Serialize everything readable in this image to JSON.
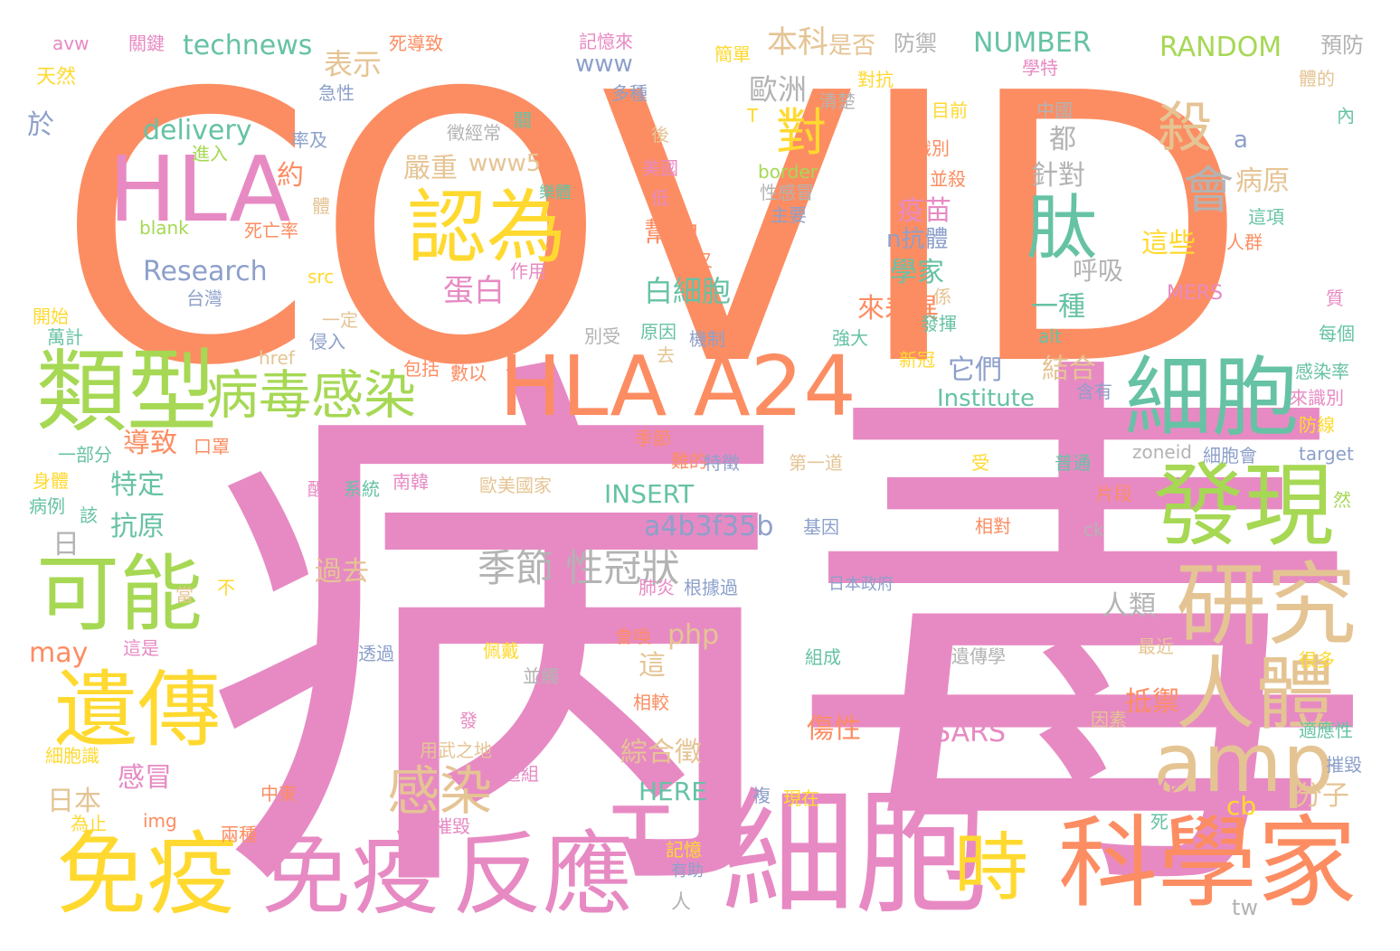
{
  "words": [
    {
      "text": "COVID",
      "color": "#fc8d62"
    },
    {
      "text": "病毒",
      "color": "#e78ac3"
    },
    {
      "text": "細胞",
      "color": "#e78ac3"
    },
    {
      "text": "科學家",
      "color": "#fc8d62"
    },
    {
      "text": "免疫",
      "color": "#ffd92f"
    },
    {
      "text": "免疫",
      "color": "#e78ac3"
    },
    {
      "text": "反應",
      "color": "#e78ac3"
    },
    {
      "text": "HLA A24",
      "color": "#fc8d62"
    },
    {
      "text": "類型",
      "color": "#a6d854"
    },
    {
      "text": "細胞",
      "color": "#66c2a5"
    },
    {
      "text": "發現",
      "color": "#a6d854"
    },
    {
      "text": "研究",
      "color": "#e5c494"
    },
    {
      "text": "HLA",
      "color": "#e78ac3"
    },
    {
      "text": "認為",
      "color": "#ffd92f"
    },
    {
      "text": "遺傳",
      "color": "#ffd92f"
    },
    {
      "text": "可能",
      "color": "#a6d854"
    },
    {
      "text": "人體",
      "color": "#e5c494"
    },
    {
      "text": "amp",
      "color": "#e5c494"
    },
    {
      "text": "時",
      "color": "#ffd92f"
    },
    {
      "text": "T",
      "color": "#e78ac3"
    },
    {
      "text": "肽",
      "color": "#66c2a5"
    },
    {
      "text": "病毒感染",
      "color": "#a6d854"
    },
    {
      "text": "感染",
      "color": "#e5c494"
    },
    {
      "text": "季節 性冠狀",
      "color": "#b3b3b3"
    },
    {
      "text": "殺",
      "color": "#e5c494"
    },
    {
      "text": "會",
      "color": "#b3b3b3"
    },
    {
      "text": "對",
      "color": "#ffd92f"
    },
    {
      "text": "technews",
      "color": "#66c2a5"
    },
    {
      "text": "NUMBER",
      "color": "#66c2a5"
    },
    {
      "text": "RANDOM",
      "color": "#a6d854"
    },
    {
      "text": "Research",
      "color": "#8da0cb"
    },
    {
      "text": "delivery",
      "color": "#66c2a5"
    },
    {
      "text": "a4b3f35b",
      "color": "#8da0cb"
    },
    {
      "text": "Institute",
      "color": "#66c2a5"
    },
    {
      "text": "INSERT",
      "color": "#66c2a5"
    },
    {
      "text": "www5",
      "color": "#e5c494"
    },
    {
      "text": "www",
      "color": "#8da0cb"
    },
    {
      "text": "表示",
      "color": "#e5c494"
    },
    {
      "text": "歐洲",
      "color": "#b3b3b3"
    },
    {
      "text": "本科",
      "color": "#e5c494"
    },
    {
      "text": "是否",
      "color": "#e5c494"
    },
    {
      "text": "防禦",
      "color": "#b3b3b3"
    },
    {
      "text": "預防",
      "color": "#b3b3b3"
    },
    {
      "text": "嚴重",
      "color": "#e5c494"
    },
    {
      "text": "蛋白",
      "color": "#e78ac3"
    },
    {
      "text": "幫助",
      "color": "#fc8d62"
    },
    {
      "text": "白細胞",
      "color": "#66c2a5"
    },
    {
      "text": "疫苗",
      "color": "#e78ac3"
    },
    {
      "text": "學家",
      "color": "#66c2a5"
    },
    {
      "text": "n抗體",
      "color": "#8da0cb"
    },
    {
      "text": "來差異",
      "color": "#fc8d62"
    },
    {
      "text": "它們",
      "color": "#8da0cb"
    },
    {
      "text": "結合",
      "color": "#e5c494"
    },
    {
      "text": "一種",
      "color": "#66c2a5"
    },
    {
      "text": "針對",
      "color": "#b3b3b3"
    },
    {
      "text": "都",
      "color": "#b3b3b3"
    },
    {
      "text": "這些",
      "color": "#ffd92f"
    },
    {
      "text": "呼吸",
      "color": "#b3b3b3"
    },
    {
      "text": "病原",
      "color": "#e5c494"
    },
    {
      "text": "約",
      "color": "#fc8d62"
    },
    {
      "text": "於",
      "color": "#8da0cb"
    },
    {
      "text": "導致",
      "color": "#fc8d62"
    },
    {
      "text": "特定",
      "color": "#66c2a5"
    },
    {
      "text": "抗原",
      "color": "#66c2a5"
    },
    {
      "text": "日",
      "color": "#b3b3b3"
    },
    {
      "text": "過去",
      "color": "#e5c494"
    },
    {
      "text": "人類",
      "color": "#b3b3b3"
    },
    {
      "text": "may",
      "color": "#fc8d62"
    },
    {
      "text": "php",
      "color": "#e5c494"
    },
    {
      "text": "這",
      "color": "#e5c494"
    },
    {
      "text": "傷性",
      "color": "#fc8d62"
    },
    {
      "text": "綜合徵",
      "color": "#e5c494"
    },
    {
      "text": "SARS",
      "color": "#e78ac3"
    },
    {
      "text": "抵禦",
      "color": "#fc8d62"
    },
    {
      "text": "活化",
      "color": "#e78ac3"
    },
    {
      "text": "分子",
      "color": "#e5c494"
    },
    {
      "text": "cb",
      "color": "#ffd92f"
    },
    {
      "text": "感冒",
      "color": "#e78ac3"
    },
    {
      "text": "日本",
      "color": "#e5c494"
    },
    {
      "text": "HERE",
      "color": "#66c2a5"
    },
    {
      "text": "tw",
      "color": "#b3b3b3"
    },
    {
      "text": "a",
      "color": "#8da0cb"
    },
    {
      "text": "MERS",
      "color": "#e78ac3"
    },
    {
      "text": "avw",
      "color": "#e78ac3"
    },
    {
      "text": "關鍵",
      "color": "#e78ac3"
    },
    {
      "text": "死導致",
      "color": "#fc8d62"
    },
    {
      "text": "記憶來",
      "color": "#e78ac3"
    },
    {
      "text": "天然",
      "color": "#ffd92f"
    },
    {
      "text": "簡單",
      "color": "#ffd92f"
    },
    {
      "text": "學特",
      "color": "#e78ac3"
    },
    {
      "text": "體的",
      "color": "#e5c494"
    },
    {
      "text": "急性",
      "color": "#8da0cb"
    },
    {
      "text": "多種",
      "color": "#8da0cb"
    },
    {
      "text": "對抗",
      "color": "#ffd92f"
    },
    {
      "text": "清楚",
      "color": "#b3b3b3"
    },
    {
      "text": "目前",
      "color": "#ffd92f"
    },
    {
      "text": "中國",
      "color": "#b3b3b3"
    },
    {
      "text": "內",
      "color": "#66c2a5"
    },
    {
      "text": "率及",
      "color": "#8da0cb"
    },
    {
      "text": "徵經常",
      "color": "#b3b3b3"
    },
    {
      "text": "關",
      "color": "#66c2a5"
    },
    {
      "text": "後",
      "color": "#e5c494"
    },
    {
      "text": "T",
      "color": "#ffd92f"
    },
    {
      "text": "識別",
      "color": "#fc8d62"
    },
    {
      "text": "進入",
      "color": "#a6d854"
    },
    {
      "text": "美國",
      "color": "#e78ac3"
    },
    {
      "text": "border",
      "color": "#a6d854"
    },
    {
      "text": "並殺",
      "color": "#fc8d62"
    },
    {
      "text": "體",
      "color": "#e5c494"
    },
    {
      "text": "低",
      "color": "#e78ac3"
    },
    {
      "text": "樂體",
      "color": "#66c2a5"
    },
    {
      "text": "性感冒",
      "color": "#b3b3b3"
    },
    {
      "text": "主要",
      "color": "#8da0cb"
    },
    {
      "text": "這項",
      "color": "#66c2a5"
    },
    {
      "text": "blank",
      "color": "#a6d854"
    },
    {
      "text": "死亡率",
      "color": "#fc8d62"
    },
    {
      "text": "人群",
      "color": "#fc8d62"
    },
    {
      "text": "交叉",
      "color": "#fc8d62"
    },
    {
      "text": "src",
      "color": "#ffd92f"
    },
    {
      "text": "作用",
      "color": "#e78ac3"
    },
    {
      "text": "台灣",
      "color": "#8da0cb"
    },
    {
      "text": "係",
      "color": "#e5c494"
    },
    {
      "text": "質",
      "color": "#e78ac3"
    },
    {
      "text": "開始",
      "color": "#ffd92f"
    },
    {
      "text": "一定",
      "color": "#e5c494"
    },
    {
      "text": "發揮",
      "color": "#66c2a5"
    },
    {
      "text": "萬計",
      "color": "#66c2a5"
    },
    {
      "text": "侵入",
      "color": "#8da0cb"
    },
    {
      "text": "別受",
      "color": "#b3b3b3"
    },
    {
      "text": "原因",
      "color": "#66c2a5"
    },
    {
      "text": "機制",
      "color": "#8da0cb"
    },
    {
      "text": "強大",
      "color": "#66c2a5"
    },
    {
      "text": "alt",
      "color": "#66c2a5"
    },
    {
      "text": "每個",
      "color": "#66c2a5"
    },
    {
      "text": "href",
      "color": "#e5c494"
    },
    {
      "text": "去",
      "color": "#e5c494"
    },
    {
      "text": "新冠",
      "color": "#ffd92f"
    },
    {
      "text": "包括",
      "color": "#fc8d62"
    },
    {
      "text": "數以",
      "color": "#fc8d62"
    },
    {
      "text": "含有",
      "color": "#8da0cb"
    },
    {
      "text": "感染率",
      "color": "#66c2a5"
    },
    {
      "text": "來識別",
      "color": "#e78ac3"
    },
    {
      "text": "口罩",
      "color": "#fc8d62"
    },
    {
      "text": "一部分",
      "color": "#66c2a5"
    },
    {
      "text": "季節",
      "color": "#fc8d62"
    },
    {
      "text": "防線",
      "color": "#ffd92f"
    },
    {
      "text": "難的",
      "color": "#fc8d62"
    },
    {
      "text": "特徵",
      "color": "#8da0cb"
    },
    {
      "text": "第一道",
      "color": "#e5c494"
    },
    {
      "text": "受",
      "color": "#ffd92f"
    },
    {
      "text": "普通",
      "color": "#66c2a5"
    },
    {
      "text": "zoneid",
      "color": "#b3b3b3"
    },
    {
      "text": "細胞會",
      "color": "#8da0cb"
    },
    {
      "text": "target",
      "color": "#8da0cb"
    },
    {
      "text": "身體",
      "color": "#ffd92f"
    },
    {
      "text": "醒",
      "color": "#e78ac3"
    },
    {
      "text": "系統",
      "color": "#66c2a5"
    },
    {
      "text": "南韓",
      "color": "#e78ac3"
    },
    {
      "text": "歐美國家",
      "color": "#e5c494"
    },
    {
      "text": "片段",
      "color": "#fc8d62"
    },
    {
      "text": "然",
      "color": "#a6d854"
    },
    {
      "text": "病例",
      "color": "#66c2a5"
    },
    {
      "text": "該",
      "color": "#66c2a5"
    },
    {
      "text": "基因",
      "color": "#8da0cb"
    },
    {
      "text": "相對",
      "color": "#fc8d62"
    },
    {
      "text": "ck",
      "color": "#b3b3b3"
    },
    {
      "text": "不",
      "color": "#ffd92f"
    },
    {
      "text": "當",
      "color": "#e5c494"
    },
    {
      "text": "肺炎",
      "color": "#e78ac3"
    },
    {
      "text": "根據過",
      "color": "#8da0cb"
    },
    {
      "text": "日本政府",
      "color": "#8da0cb"
    },
    {
      "text": "會喚",
      "color": "#fc8d62"
    },
    {
      "text": "最近",
      "color": "#e5c494"
    },
    {
      "text": "這是",
      "color": "#e78ac3"
    },
    {
      "text": "透過",
      "color": "#8da0cb"
    },
    {
      "text": "佩戴",
      "color": "#ffd92f"
    },
    {
      "text": "並觸",
      "color": "#b3b3b3"
    },
    {
      "text": "組成",
      "color": "#66c2a5"
    },
    {
      "text": "遺傳學",
      "color": "#b3b3b3"
    },
    {
      "text": "很多",
      "color": "#ffd92f"
    },
    {
      "text": "相較",
      "color": "#fc8d62"
    },
    {
      "text": "適應性",
      "color": "#66c2a5"
    },
    {
      "text": "因素",
      "color": "#e5c494"
    },
    {
      "text": "發",
      "color": "#e78ac3"
    },
    {
      "text": "細胞識",
      "color": "#ffd92f"
    },
    {
      "text": "用武之地",
      "color": "#e5c494"
    },
    {
      "text": "這組",
      "color": "#e78ac3"
    },
    {
      "text": "摧毀",
      "color": "#8da0cb"
    },
    {
      "text": "中東",
      "color": "#fc8d62"
    },
    {
      "text": "複",
      "color": "#8da0cb"
    },
    {
      "text": "現在",
      "color": "#ffd92f"
    },
    {
      "text": "為止",
      "color": "#ffd92f"
    },
    {
      "text": "img",
      "color": "#fc8d62"
    },
    {
      "text": "並摧毀",
      "color": "#e78ac3"
    },
    {
      "text": "死",
      "color": "#66c2a5"
    },
    {
      "text": "兩種",
      "color": "#fc8d62"
    },
    {
      "text": "記憶",
      "color": "#ffd92f"
    },
    {
      "text": "有助",
      "color": "#8da0cb"
    },
    {
      "text": "人",
      "color": "#b3b3b3"
    }
  ]
}
